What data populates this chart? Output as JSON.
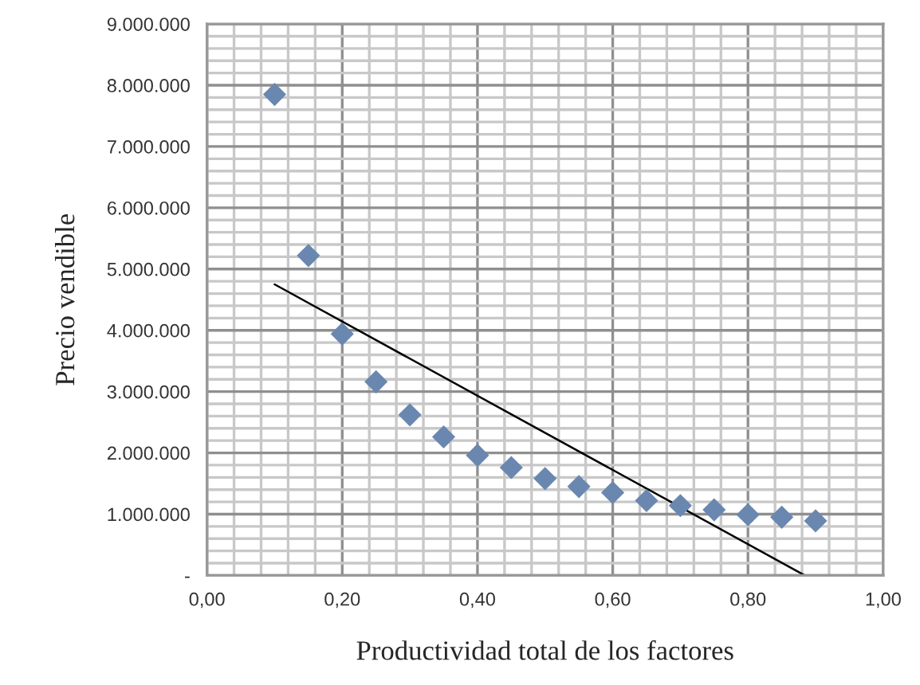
{
  "chart_data": {
    "type": "scatter",
    "xlabel": "Productividad total de los factores",
    "ylabel": "Precio vendible",
    "xlim": [
      0,
      1
    ],
    "ylim": [
      0,
      9000000
    ],
    "xticks": [
      {
        "value": 0,
        "label": "0,00"
      },
      {
        "value": 0.2,
        "label": "0,20"
      },
      {
        "value": 0.4,
        "label": "0,40"
      },
      {
        "value": 0.6,
        "label": "0,60"
      },
      {
        "value": 0.8,
        "label": "0,80"
      },
      {
        "value": 1,
        "label": "1,00"
      }
    ],
    "yticks": [
      {
        "value": 0,
        "label": "-"
      },
      {
        "value": 1000000,
        "label": "1.000.000"
      },
      {
        "value": 2000000,
        "label": "2.000.000"
      },
      {
        "value": 3000000,
        "label": "3.000.000"
      },
      {
        "value": 4000000,
        "label": "4.000.000"
      },
      {
        "value": 5000000,
        "label": "5.000.000"
      },
      {
        "value": 6000000,
        "label": "6.000.000"
      },
      {
        "value": 7000000,
        "label": "7.000.000"
      },
      {
        "value": 8000000,
        "label": "8.000.000"
      },
      {
        "value": 9000000,
        "label": "9.000.000"
      }
    ],
    "grid": true,
    "series": [
      {
        "marker": "diamond",
        "color": "#6a87b0",
        "x": [
          0.1,
          0.15,
          0.2,
          0.25,
          0.3,
          0.35,
          0.4,
          0.45,
          0.5,
          0.55,
          0.6,
          0.65,
          0.7,
          0.75,
          0.8,
          0.85,
          0.9
        ],
        "values": [
          7850000,
          5220000,
          3940000,
          3160000,
          2620000,
          2260000,
          1960000,
          1760000,
          1580000,
          1450000,
          1350000,
          1220000,
          1140000,
          1070000,
          990000,
          950000,
          890000
        ]
      },
      {
        "type": "line",
        "color": "#000000",
        "line_style": "solid",
        "x": [
          0.1,
          0.884
        ],
        "values": [
          4750000,
          0
        ]
      }
    ]
  }
}
